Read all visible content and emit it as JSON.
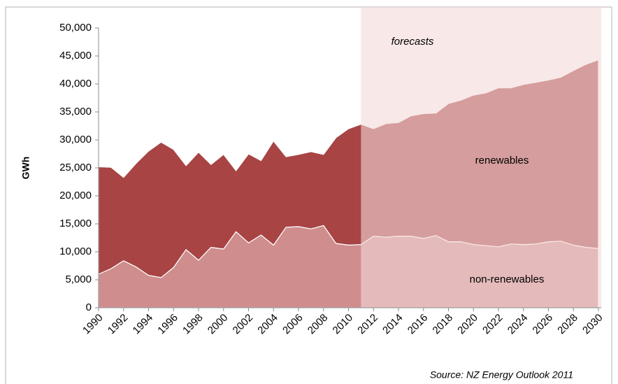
{
  "chart_data": {
    "type": "stacked_area",
    "y_label": "GWh",
    "x": [
      1990,
      1991,
      1992,
      1993,
      1994,
      1995,
      1996,
      1997,
      1998,
      1999,
      2000,
      2001,
      2002,
      2003,
      2004,
      2005,
      2006,
      2007,
      2008,
      2009,
      2010,
      2011,
      2012,
      2013,
      2014,
      2015,
      2016,
      2017,
      2018,
      2019,
      2020,
      2021,
      2022,
      2023,
      2024,
      2025,
      2026,
      2027,
      2028,
      2029,
      2030
    ],
    "series": [
      {
        "name": "non-renewables",
        "color": "#cf8d8d",
        "values": [
          6000,
          7000,
          8400,
          7300,
          5800,
          5400,
          7200,
          10400,
          8500,
          10800,
          10500,
          13600,
          11600,
          13000,
          11200,
          14400,
          14500,
          14100,
          14700,
          11500,
          11200,
          11300,
          12800,
          12600,
          12800,
          12800,
          12400,
          12900,
          11800,
          11800,
          11300,
          11100,
          10900,
          11400,
          11300,
          11400,
          11800,
          11900,
          11200,
          10800,
          10600
        ]
      },
      {
        "name": "renewables",
        "color": "#a84444",
        "values": [
          19200,
          18100,
          14900,
          18500,
          22200,
          24200,
          21100,
          15000,
          19300,
          14800,
          16900,
          10900,
          15900,
          13300,
          18600,
          12600,
          12900,
          13800,
          12700,
          18900,
          20800,
          21500,
          19200,
          20300,
          20300,
          21500,
          22300,
          21900,
          24700,
          25300,
          26700,
          27300,
          28400,
          27900,
          28600,
          28900,
          28900,
          29300,
          31200,
          32700,
          33700
        ]
      }
    ],
    "forecast_label": "forecasts",
    "forecast_start": 2011,
    "forecast_color": "#f4d8d9",
    "source": "Source: NZ Energy Outlook 2011",
    "xlim": [
      1990,
      2030
    ],
    "xticks": [
      1990,
      1992,
      1994,
      1996,
      1998,
      2000,
      2002,
      2004,
      2006,
      2008,
      2010,
      2012,
      2014,
      2016,
      2018,
      2020,
      2022,
      2024,
      2026,
      2028,
      2030
    ],
    "ylim": [
      0,
      50000
    ],
    "yticks": [
      0,
      {
        "value": 5000,
        "label": "5,000"
      },
      {
        "value": 10000,
        "label": "10,000"
      },
      {
        "value": 15000,
        "label": "15,000"
      },
      {
        "value": 20000,
        "label": "20,000"
      },
      {
        "value": 25000,
        "label": "25,000"
      },
      {
        "value": 30000,
        "label": "30,000"
      },
      {
        "value": 35000,
        "label": "35,000"
      },
      {
        "value": 40000,
        "label": "40,000"
      },
      {
        "value": 45000,
        "label": "45,000"
      },
      {
        "value": 50000,
        "label": "50,000"
      }
    ]
  }
}
